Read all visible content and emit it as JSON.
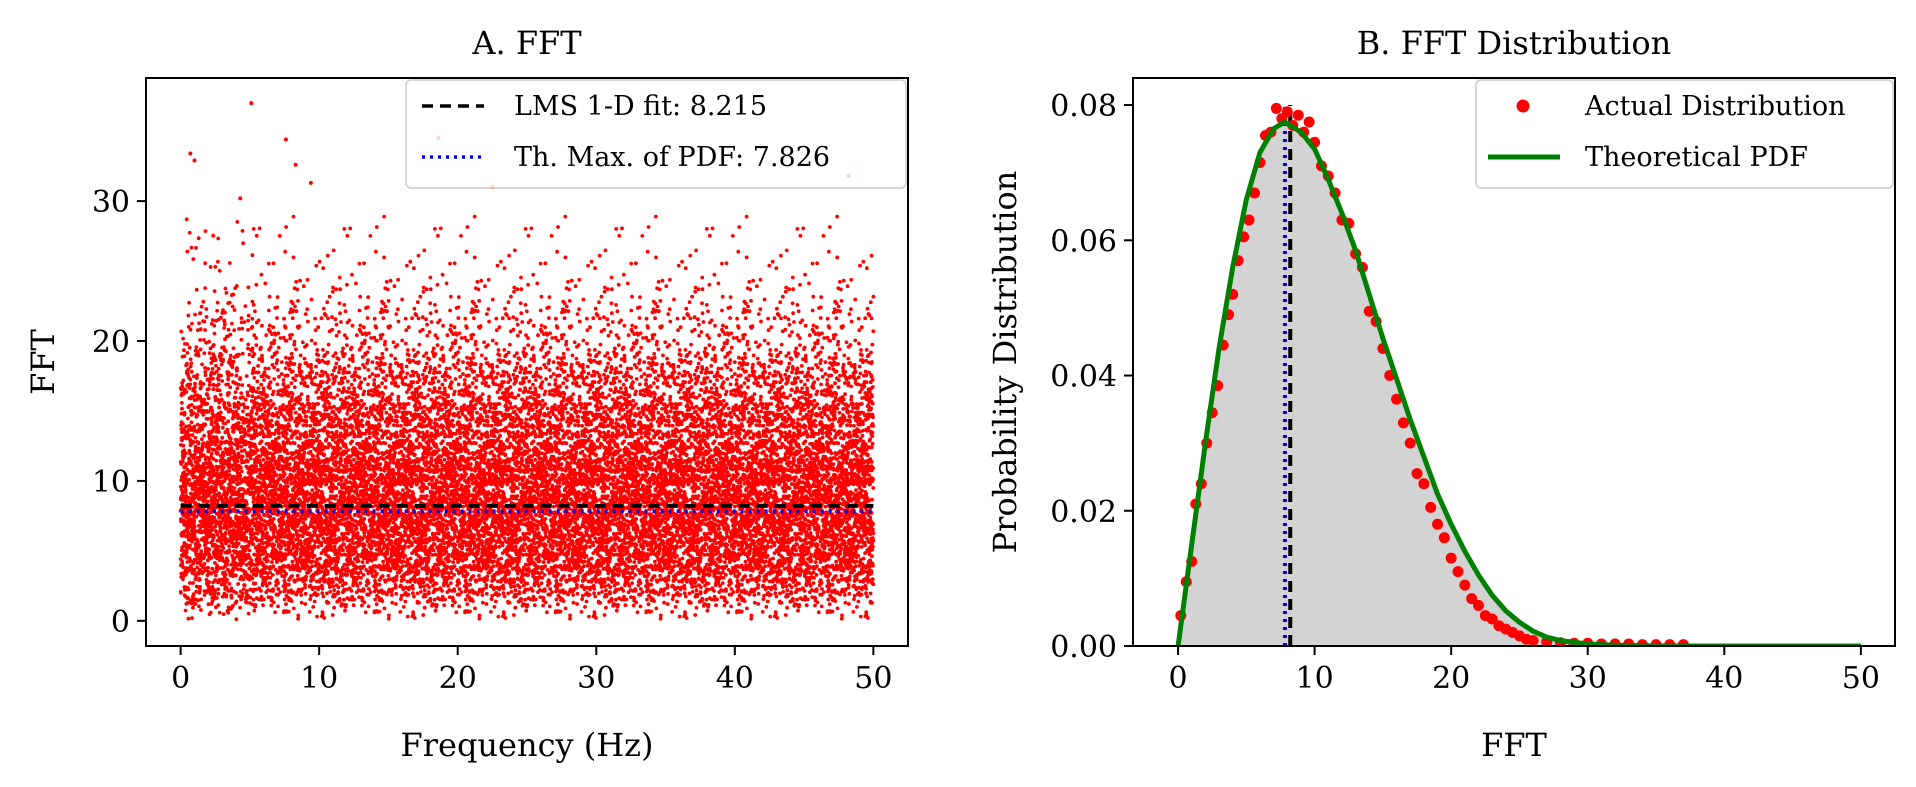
{
  "chart_data": [
    {
      "type": "scatter",
      "title": "A. FFT",
      "xlabel": "Frequency (Hz)",
      "ylabel": "FFT",
      "xlim": [
        -2.5,
        52.5
      ],
      "ylim": [
        -1.8,
        38.8
      ],
      "xticks": [
        0,
        10,
        20,
        30,
        40,
        50
      ],
      "yticks": [
        0,
        10,
        20,
        30
      ],
      "grid": false,
      "legend_position": "upper-right",
      "colors": {
        "points": "#ff0000",
        "lms_fit": "#000000",
        "theoretical_max": "#0000ff"
      },
      "scatter_description": {
        "x_range": [
          0,
          50
        ],
        "y_approx_range": [
          0.3,
          37
        ],
        "approx_point_count": 20000
      },
      "outliers": [
        {
          "x": 5.1,
          "y": 37.0
        },
        {
          "x": 7.6,
          "y": 34.4
        },
        {
          "x": 0.7,
          "y": 33.4
        },
        {
          "x": 18.6,
          "y": 34.5
        },
        {
          "x": 8.3,
          "y": 32.6
        },
        {
          "x": 1.0,
          "y": 32.9
        },
        {
          "x": 9.4,
          "y": 31.3
        },
        {
          "x": 4.3,
          "y": 30.2
        },
        {
          "x": 22.5,
          "y": 31.0
        },
        {
          "x": 48.2,
          "y": 31.8
        }
      ],
      "series": [
        {
          "name": "LMS 1-D fit: 8.215",
          "kind": "hline",
          "value": 8.215,
          "x_range": [
            0,
            50
          ],
          "style": "dashed",
          "color": "#000000"
        },
        {
          "name": "Th. Max. of PDF: 7.826",
          "kind": "hline",
          "value": 7.826,
          "x_range": [
            0,
            50
          ],
          "style": "dotted",
          "color": "#0000ff"
        }
      ]
    },
    {
      "type": "line",
      "title": "B. FFT Distribution",
      "xlabel": "FFT",
      "ylabel": "Probability Distribution",
      "xlim": [
        -3.3,
        52.5
      ],
      "ylim": [
        0,
        0.084
      ],
      "xticks": [
        0,
        10,
        20,
        30,
        40,
        50
      ],
      "yticks": [
        0.0,
        0.02,
        0.04,
        0.06,
        0.08
      ],
      "ytick_labels": [
        "0.00",
        "0.02",
        "0.04",
        "0.06",
        "0.08"
      ],
      "grid": false,
      "legend_position": "upper-right",
      "colors": {
        "points": "#ff0000",
        "pdf": "#008000",
        "fill": "#d3d3d3",
        "lms_fit": "#000000",
        "theoretical_max": "#0000ff"
      },
      "vlines": [
        {
          "x": 8.215,
          "style": "dashed",
          "color": "#000000"
        },
        {
          "x": 7.826,
          "style": "dotted",
          "color": "#0000ff"
        }
      ],
      "series": [
        {
          "name": "Actual Distribution",
          "kind": "points",
          "color": "#ff0000",
          "x": [
            0.2,
            0.6,
            1.0,
            1.3,
            1.7,
            2.1,
            2.5,
            2.9,
            3.3,
            3.7,
            4.0,
            4.4,
            4.8,
            5.2,
            5.6,
            6.0,
            6.4,
            6.8,
            7.2,
            7.6,
            8.0,
            8.4,
            8.8,
            9.2,
            9.6,
            10.0,
            10.5,
            11.0,
            11.5,
            12.0,
            12.5,
            13.0,
            13.5,
            14.0,
            14.5,
            15.0,
            15.5,
            16.0,
            16.5,
            17.0,
            17.5,
            18.0,
            18.5,
            19.0,
            19.5,
            20.0,
            20.5,
            21.0,
            21.5,
            22.0,
            22.5,
            23.0,
            23.5,
            24.0,
            24.5,
            25.0,
            25.5,
            26.0,
            27.0,
            28.0,
            29.0,
            30.0,
            31.0,
            32.0,
            33.0,
            34.0,
            35.0,
            36.0,
            37.0
          ],
          "y": [
            0.0045,
            0.0095,
            0.0125,
            0.021,
            0.024,
            0.03,
            0.0345,
            0.0385,
            0.0445,
            0.049,
            0.052,
            0.057,
            0.0605,
            0.063,
            0.067,
            0.0715,
            0.0755,
            0.076,
            0.0795,
            0.078,
            0.079,
            0.077,
            0.0785,
            0.076,
            0.0775,
            0.0745,
            0.071,
            0.0695,
            0.067,
            0.063,
            0.0625,
            0.058,
            0.056,
            0.0495,
            0.048,
            0.044,
            0.04,
            0.0365,
            0.033,
            0.03,
            0.0255,
            0.024,
            0.0205,
            0.018,
            0.016,
            0.013,
            0.011,
            0.009,
            0.007,
            0.006,
            0.0045,
            0.004,
            0.003,
            0.0025,
            0.002,
            0.0015,
            0.001,
            0.0008,
            0.0006,
            0.0005,
            0.0004,
            0.0004,
            0.0003,
            0.0003,
            0.0003,
            0.0002,
            0.0002,
            0.0002,
            0.0002
          ]
        },
        {
          "name": "Theoretical PDF",
          "kind": "line",
          "color": "#008000",
          "x": [
            0,
            1,
            2,
            3,
            4,
            5,
            6,
            7,
            7.8,
            9,
            10,
            11,
            12,
            13,
            14,
            15,
            16,
            17,
            18,
            19,
            20,
            21,
            22,
            23,
            24,
            25,
            26,
            27,
            28,
            30,
            32,
            35,
            40,
            45,
            50
          ],
          "y": [
            0,
            0.015,
            0.03,
            0.044,
            0.056,
            0.066,
            0.073,
            0.0765,
            0.0775,
            0.076,
            0.0735,
            0.069,
            0.064,
            0.0585,
            0.052,
            0.0455,
            0.0395,
            0.0335,
            0.028,
            0.0225,
            0.018,
            0.014,
            0.0105,
            0.0075,
            0.0052,
            0.0035,
            0.0022,
            0.0013,
            0.0008,
            0.0003,
            0.0001,
            0,
            0,
            0,
            0
          ]
        }
      ]
    }
  ]
}
